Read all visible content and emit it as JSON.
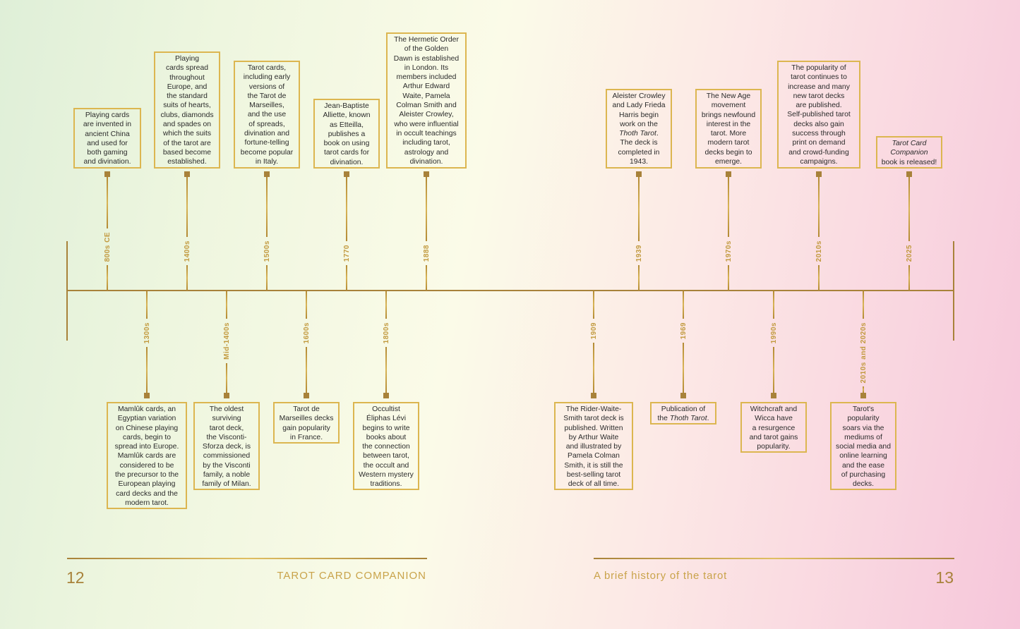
{
  "footer": {
    "left_page_number": "12",
    "left_running_head": "TAROT CARD COMPANION",
    "right_running_head": "A brief history of the tarot",
    "right_page_number": "13"
  },
  "colors": {
    "gold": "#a8823a",
    "border_gold": "#dcb650",
    "label_gold": "#c29a3f"
  },
  "timeline": {
    "above": [
      {
        "label": "800s CE",
        "text": [
          {
            "t": "Playing cards\nare invented in\nancient China\nand used for\nboth gaming\nand divination."
          }
        ]
      },
      {
        "label": "1400s",
        "text": [
          {
            "t": "Playing\ncards spread\nthroughout\nEurope, and\nthe standard\nsuits of hearts,\nclubs, diamonds\nand spades on\nwhich the suits\nof the tarot are\nbased become\nestablished."
          }
        ]
      },
      {
        "label": "1500s",
        "text": [
          {
            "t": "Tarot cards,\nincluding early\nversions of\nthe Tarot de\nMarseilles,\nand the use\nof spreads,\ndivination and\nfortune-telling\nbecome popular\nin Italy."
          }
        ]
      },
      {
        "label": "1770",
        "text": [
          {
            "t": "Jean-Baptiste\nAlliette, known\nas Etteilla,\npublishes a\nbook on using\ntarot cards for\ndivination."
          }
        ]
      },
      {
        "label": "1888",
        "text": [
          {
            "t": "The Hermetic Order\nof the Golden\nDawn is established\nin London. Its\nmembers included\nArthur Edward\nWaite, Pamela\nColman Smith and\nAleister Crowley,\nwho were influential\nin occult teachings\nincluding tarot,\nastrology and\ndivination."
          }
        ]
      },
      {
        "label": "1939",
        "text": [
          {
            "t": "Aleister Crowley\nand Lady Frieda\nHarris begin\nwork on the\n"
          },
          {
            "t": "Thoth Tarot",
            "i": true
          },
          {
            "t": ".\nThe deck is\ncompleted in\n1943."
          }
        ]
      },
      {
        "label": "1970s",
        "text": [
          {
            "t": "The New Age\nmovement\nbrings newfound\ninterest in the\ntarot. More\nmodern tarot\ndecks begin to\nemerge."
          }
        ]
      },
      {
        "label": "2010s",
        "text": [
          {
            "t": "The popularity of\ntarot continues to\nincrease and many\nnew tarot decks\nare published.\nSelf-published tarot\ndecks also gain\nsuccess through\nprint on demand\nand crowd-funding\ncampaigns."
          }
        ]
      },
      {
        "label": "2025",
        "text": [
          {
            "t": "Tarot Card\nCompanion",
            "i": true
          },
          {
            "t": "\nbook is released!"
          }
        ]
      }
    ],
    "below": [
      {
        "label": "1300s",
        "text": [
          {
            "t": "Mamlûk cards, an\nEgyptian variation\non Chinese playing\ncards, begin to\nspread into Europe.\nMamlûk cards are\nconsidered to be\nthe precursor to the\nEuropean playing\ncard decks and the\nmodern tarot."
          }
        ]
      },
      {
        "label": "Mid-1400s",
        "text": [
          {
            "t": "The oldest\nsurviving\ntarot deck,\nthe Visconti-\nSforza deck, is\ncommissioned\nby the Visconti\nfamily, a noble\nfamily of Milan."
          }
        ]
      },
      {
        "label": "1600s",
        "text": [
          {
            "t": "Tarot de\nMarseilles decks\ngain popularity\nin France."
          }
        ]
      },
      {
        "label": "1800s",
        "text": [
          {
            "t": "Occultist\nÉliphas Lévi\nbegins to write\nbooks about\nthe connection\nbetween tarot,\nthe occult and\nWestern mystery\ntraditions."
          }
        ]
      },
      {
        "label": "1909",
        "text": [
          {
            "t": "The Rider-Waite-\nSmith tarot deck is\npublished. Written\nby Arthur Waite\nand illustrated by\nPamela Colman\nSmith, it is still the\nbest-selling tarot\ndeck of all time."
          }
        ]
      },
      {
        "label": "1969",
        "text": [
          {
            "t": "Publication of\nthe "
          },
          {
            "t": "Thoth Tarot",
            "i": true
          },
          {
            "t": "."
          }
        ]
      },
      {
        "label": "1990s",
        "text": [
          {
            "t": "Witchcraft and\nWicca have\na resurgence\nand tarot gains\npopularity."
          }
        ]
      },
      {
        "label": "2010s and 2020s",
        "text": [
          {
            "t": "Tarot's\npopularity\nsoars via the\nmediums of\nsocial media and\nonline learning\nand the ease\nof purchasing\ndecks."
          }
        ]
      }
    ]
  }
}
